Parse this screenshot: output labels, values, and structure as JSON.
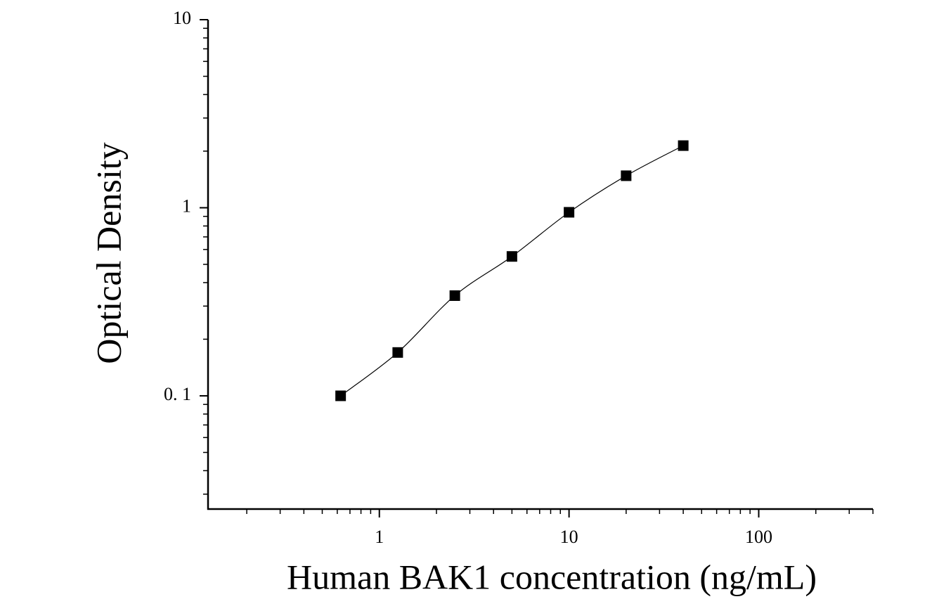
{
  "chart_data": {
    "type": "scatter",
    "x_label": "Human BAK1 concentration (ng/mL)",
    "y_label": "Optical Density",
    "x": [
      0.625,
      1.25,
      2.5,
      5,
      10,
      20,
      40
    ],
    "series": [
      {
        "color": "#000000",
        "values": [
          0.1,
          0.17,
          0.341,
          0.551,
          0.946,
          1.48,
          2.14
        ]
      }
    ],
    "fit_line": true,
    "x_log": true,
    "y_log": true,
    "xlim": [
      0.125,
      400
    ],
    "ylim": [
      0.025,
      10
    ],
    "xticks": [
      1,
      10,
      100
    ],
    "yticks": [
      {
        "value": 0.1,
        "label": "0. 1"
      },
      1,
      10
    ],
    "grid": false
  }
}
